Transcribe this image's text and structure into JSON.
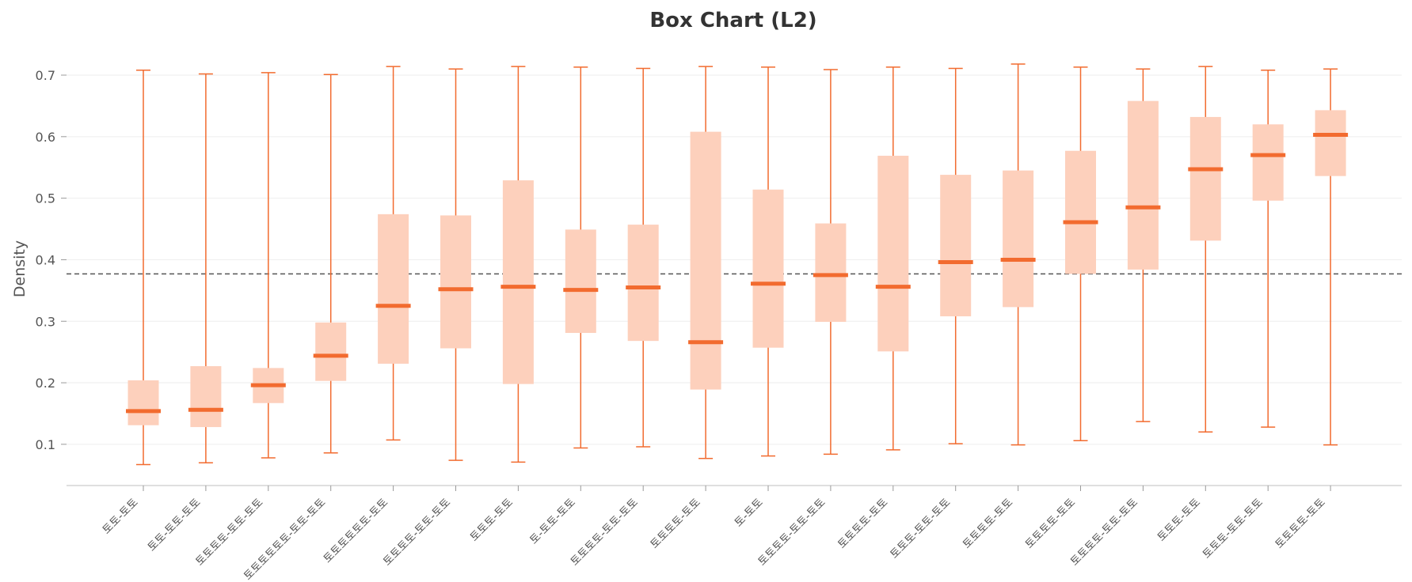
{
  "chart_data": {
    "type": "box",
    "title": "Box Chart (L2)",
    "xlabel": "",
    "ylabel": "Density",
    "ylim": [
      0.033,
      0.745
    ],
    "yticks": [
      0.1,
      0.2,
      0.3,
      0.4,
      0.5,
      0.6,
      0.7
    ],
    "ytick_labels": [
      "0.1",
      "0.2",
      "0.3",
      "0.4",
      "0.5",
      "0.6",
      "0.7"
    ],
    "reference_line": 0.377,
    "grid": "horizontal",
    "categories": [
      "토토-토토",
      "토토-토토-토토",
      "토토토토-토토-토토",
      "토토토토토토-토토-토토",
      "토토토토토토-토토",
      "토토토토-토토-토토",
      "토토토-토토",
      "토-토토-토토",
      "토토토토-토토-토토",
      "토토토토-토토",
      "토-토토",
      "토토토토-토토-토토",
      "토토토토-토토",
      "토토토-토토-토토",
      "토토토토-토토",
      "토토토토-토토",
      "토토토토-토토-토토",
      "토토토-토토",
      "토토토-토토-토토",
      "토토토토-토토"
    ],
    "boxes": [
      {
        "min": 0.067,
        "q1": 0.131,
        "median": 0.154,
        "q3": 0.204,
        "max": 0.708
      },
      {
        "min": 0.07,
        "q1": 0.128,
        "median": 0.156,
        "q3": 0.227,
        "max": 0.702
      },
      {
        "min": 0.078,
        "q1": 0.167,
        "median": 0.196,
        "q3": 0.224,
        "max": 0.704
      },
      {
        "min": 0.086,
        "q1": 0.203,
        "median": 0.244,
        "q3": 0.298,
        "max": 0.701
      },
      {
        "min": 0.107,
        "q1": 0.231,
        "median": 0.325,
        "q3": 0.474,
        "max": 0.714
      },
      {
        "min": 0.074,
        "q1": 0.256,
        "median": 0.352,
        "q3": 0.472,
        "max": 0.71
      },
      {
        "min": 0.071,
        "q1": 0.198,
        "median": 0.356,
        "q3": 0.529,
        "max": 0.714
      },
      {
        "min": 0.094,
        "q1": 0.281,
        "median": 0.351,
        "q3": 0.449,
        "max": 0.713
      },
      {
        "min": 0.096,
        "q1": 0.268,
        "median": 0.355,
        "q3": 0.457,
        "max": 0.711
      },
      {
        "min": 0.077,
        "q1": 0.189,
        "median": 0.266,
        "q3": 0.608,
        "max": 0.714
      },
      {
        "min": 0.081,
        "q1": 0.257,
        "median": 0.361,
        "q3": 0.514,
        "max": 0.713
      },
      {
        "min": 0.084,
        "q1": 0.299,
        "median": 0.375,
        "q3": 0.459,
        "max": 0.709
      },
      {
        "min": 0.091,
        "q1": 0.251,
        "median": 0.356,
        "q3": 0.569,
        "max": 0.713
      },
      {
        "min": 0.101,
        "q1": 0.308,
        "median": 0.396,
        "q3": 0.538,
        "max": 0.711
      },
      {
        "min": 0.099,
        "q1": 0.323,
        "median": 0.4,
        "q3": 0.545,
        "max": 0.718
      },
      {
        "min": 0.106,
        "q1": 0.377,
        "median": 0.461,
        "q3": 0.577,
        "max": 0.713
      },
      {
        "min": 0.137,
        "q1": 0.384,
        "median": 0.485,
        "q3": 0.658,
        "max": 0.71
      },
      {
        "min": 0.12,
        "q1": 0.431,
        "median": 0.547,
        "q3": 0.632,
        "max": 0.714
      },
      {
        "min": 0.128,
        "q1": 0.496,
        "median": 0.57,
        "q3": 0.62,
        "max": 0.708
      },
      {
        "min": 0.099,
        "q1": 0.536,
        "median": 0.603,
        "q3": 0.643,
        "max": 0.71
      }
    ]
  },
  "colors": {
    "box_fill": "#fdd0bc",
    "median": "#f26b2f",
    "whisker": "#f26b2f",
    "reference": "#555555",
    "grid": "#eeeeee",
    "axis": "#cccccc"
  }
}
